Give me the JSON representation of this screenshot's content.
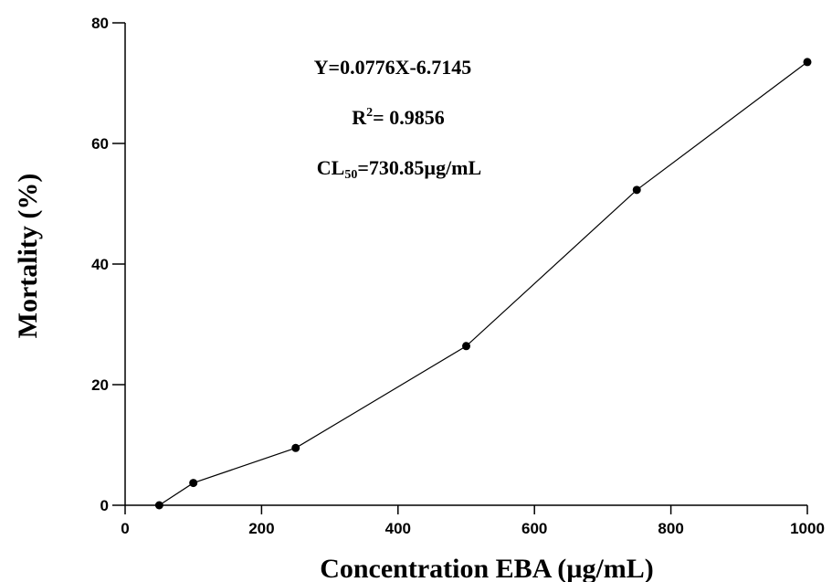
{
  "chart_data": {
    "type": "line",
    "x": [
      50,
      100,
      250,
      500,
      750,
      1000
    ],
    "series": [
      {
        "values": [
          0,
          3.7,
          9.5,
          26.4,
          52.3,
          73.5
        ]
      }
    ],
    "xlabel": "Concentration  EBA (µg/mL)",
    "ylabel": "Mortality (%)",
    "xlim": [
      0,
      1000
    ],
    "ylim": [
      0,
      80
    ],
    "xticks": [
      "0",
      "200",
      "400",
      "600",
      "800",
      "1000"
    ],
    "yticks": [
      "0",
      "20",
      "40",
      "60",
      "80"
    ],
    "grid": false,
    "annotations": {
      "equation": "Y=0.0776X-6.7145",
      "r2_prefix": "R",
      "r2_sup": "2",
      "r2_value": "= 0.9856",
      "cl50_prefix": "CL",
      "cl50_sub": "50",
      "cl50_value": "=730.85µg/mL"
    }
  }
}
